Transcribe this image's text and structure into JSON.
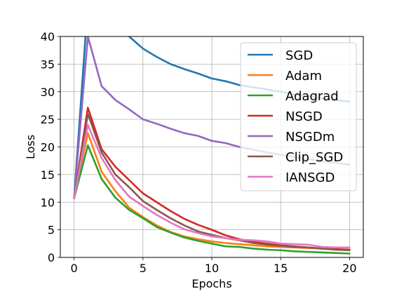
{
  "chart_data": {
    "type": "line",
    "title": "",
    "xlabel": "Epochs",
    "ylabel": "Loss",
    "xlim": [
      -1,
      21
    ],
    "ylim": [
      0,
      40
    ],
    "xticks": [
      0,
      5,
      10,
      15,
      20
    ],
    "yticks": [
      0,
      5,
      10,
      15,
      20,
      25,
      30,
      35,
      40
    ],
    "grid": true,
    "legend_position": "top-right",
    "x": [
      0,
      1,
      2,
      3,
      4,
      5,
      6,
      7,
      8,
      9,
      10,
      11,
      12,
      13,
      14,
      15,
      16,
      17,
      18,
      19,
      20
    ],
    "series": [
      {
        "name": "SGD",
        "color": "#1f77b4",
        "values": [
          10.7,
          46,
          44,
          42,
          40,
          37.8,
          36.3,
          35,
          34.1,
          33.3,
          32.4,
          31.9,
          31.2,
          30.8,
          30.4,
          30,
          29.5,
          29.2,
          28.8,
          28.5,
          28.2
        ]
      },
      {
        "name": "Adam",
        "color": "#ff7f0e",
        "values": [
          10.7,
          22.5,
          15.5,
          12,
          9,
          7.3,
          5.8,
          4.6,
          3.8,
          3.3,
          2.9,
          2.6,
          2.4,
          2.2,
          2.0,
          1.9,
          1.8,
          1.7,
          1.6,
          1.4,
          1.3
        ]
      },
      {
        "name": "Adagrad",
        "color": "#2ca02c",
        "values": [
          10.7,
          20.3,
          14.2,
          10.8,
          8.6,
          7.1,
          5.5,
          4.5,
          3.6,
          3.0,
          2.5,
          2.0,
          1.9,
          1.6,
          1.4,
          1.3,
          1.1,
          1.0,
          0.9,
          0.8,
          0.7
        ]
      },
      {
        "name": "NSGD",
        "color": "#d62728",
        "values": [
          10.7,
          27.1,
          19.6,
          16.4,
          14.0,
          11.6,
          10.0,
          8.4,
          7.0,
          5.9,
          5.0,
          4.0,
          3.3,
          2.8,
          2.5,
          2.2,
          2.0,
          1.8,
          1.6,
          1.5,
          1.4
        ]
      },
      {
        "name": "NSGDm",
        "color": "#9467bd",
        "values": [
          10.7,
          40,
          31,
          28.5,
          26.8,
          25,
          24.2,
          23.3,
          22.5,
          22,
          21.1,
          20.7,
          20.0,
          19.5,
          19.0,
          18.6,
          18.2,
          17.8,
          17.4,
          17.1,
          16.8
        ]
      },
      {
        "name": "Clip_SGD",
        "color": "#8c564b",
        "values": [
          10.7,
          26,
          19,
          15,
          12.7,
          10.2,
          8.6,
          7.1,
          5.8,
          4.7,
          4.1,
          3.5,
          3.1,
          2.6,
          2.3,
          2.1,
          1.9,
          1.8,
          1.6,
          1.4,
          1.3
        ]
      },
      {
        "name": "IANSGD",
        "color": "#e377c2",
        "values": [
          10.7,
          24,
          18,
          14,
          11,
          9.3,
          7.7,
          6.3,
          5.1,
          4.4,
          3.8,
          3.5,
          3.2,
          3.1,
          2.9,
          2.5,
          2.4,
          2.3,
          1.9,
          1.8,
          1.8
        ]
      }
    ]
  }
}
